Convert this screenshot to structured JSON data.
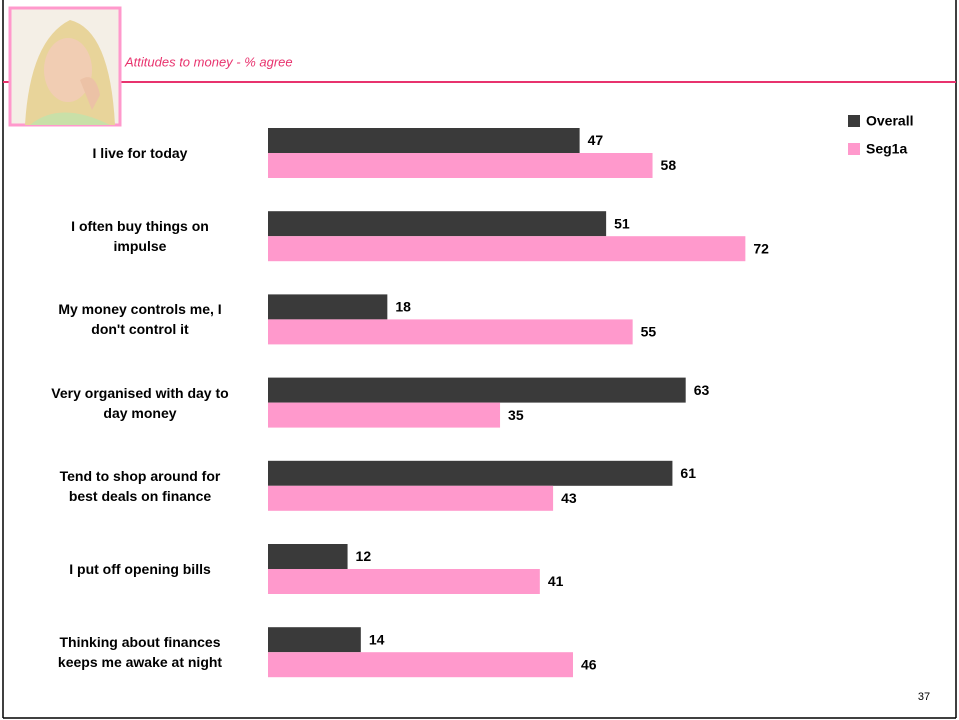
{
  "chart_data": {
    "type": "hbar",
    "title": "Attitudes to money - % agree",
    "categories": [
      "I live for today",
      "I often buy things on\nimpulse",
      "My money controls me, I\ndon't control it",
      "Very organised with day to\nday money",
      "Tend to shop around for\nbest deals on finance",
      "I put off opening bills",
      "Thinking about finances\nkeeps me awake at night"
    ],
    "series": [
      {
        "name": "Overall",
        "color": "#3a3a3a",
        "values": [
          47,
          51,
          18,
          63,
          61,
          12,
          14
        ]
      },
      {
        "name": "Seg1a",
        "color": "#ff99cc",
        "values": [
          58,
          72,
          55,
          35,
          43,
          41,
          46
        ]
      }
    ],
    "legend": "top-right"
  },
  "page_number": "37"
}
